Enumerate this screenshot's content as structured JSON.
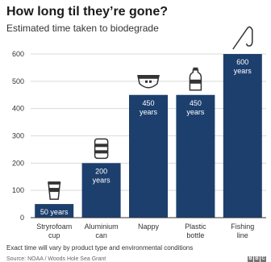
{
  "header": {
    "title": "How long til they’re gone?",
    "subtitle": "Estimated time taken to biodegrade"
  },
  "footer": {
    "note": "Exact time will vary by product type and environmental conditions",
    "source": "Source: NOAA / Woods Hole Sea Grant",
    "logo_letters": [
      "B",
      "B",
      "C"
    ]
  },
  "colors": {
    "bar": "#1d3f6e",
    "bar_label": "#ffffff",
    "inside_label": "#1d3f6e",
    "gridline": "#d9d9d9",
    "axis": "#333333",
    "icon": "#333333"
  },
  "chart_data": {
    "type": "bar",
    "title": "How long til they’re gone?",
    "subtitle": "Estimated time taken to biodegrade",
    "xlabel": "",
    "ylabel": "",
    "ylim": [
      0,
      600
    ],
    "yticks": [
      0,
      100,
      200,
      300,
      400,
      500,
      600
    ],
    "grid": true,
    "legend": "none",
    "categories": [
      [
        "Stryrofoam",
        "cup"
      ],
      [
        "Aluminium",
        "can"
      ],
      [
        "Nappy"
      ],
      [
        "Plastic",
        "bottle"
      ],
      [
        "Fishing",
        "line"
      ]
    ],
    "values": [
      50,
      200,
      450,
      450,
      600
    ],
    "data_labels": [
      [
        "50 years"
      ],
      [
        "200",
        "years"
      ],
      [
        "450",
        "years"
      ],
      [
        "450",
        "years"
      ],
      [
        "600",
        "years"
      ]
    ],
    "icons": [
      "cup-icon",
      "can-icon",
      "nappy-icon",
      "bottle-icon",
      "fishing-line-icon"
    ]
  }
}
